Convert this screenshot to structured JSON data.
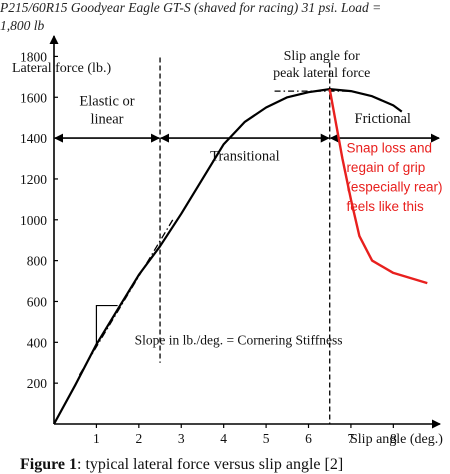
{
  "header": {
    "line1": "P215/60R15 Goodyear Eagle GT-S (shaved for racing) 31 psi. Load =",
    "line2": "1,800 lb"
  },
  "caption": {
    "bold": "Figure 1",
    "text": ": typical lateral force versus slip angle [2]"
  },
  "chart_data": {
    "type": "line",
    "xlabel": "Slip angle (deg.)",
    "ylabel": "Lateral force (lb.)",
    "xlim": [
      0,
      9.1
    ],
    "ylim": [
      0,
      1900
    ],
    "x_ticks": [
      "1",
      "2",
      "3",
      "4",
      "5",
      "6",
      "7",
      "8"
    ],
    "y_ticks": [
      "200",
      "400",
      "600",
      "800",
      "1000",
      "1200",
      "1400",
      "1600",
      "1800"
    ],
    "grid": false,
    "colors": {
      "main": "#000000",
      "snap": "#e8201e"
    },
    "series": [
      {
        "values": [
          [
            0,
            0
          ],
          [
            0.5,
            190
          ],
          [
            1,
            390
          ],
          [
            1.5,
            560
          ],
          [
            2,
            730
          ],
          [
            2.5,
            870
          ],
          [
            3,
            1030
          ],
          [
            3.5,
            1200
          ],
          [
            4,
            1370
          ],
          [
            4.5,
            1480
          ],
          [
            5,
            1550
          ],
          [
            5.5,
            1600
          ],
          [
            6,
            1625
          ],
          [
            6.5,
            1640
          ],
          [
            7,
            1630
          ],
          [
            7.5,
            1605
          ],
          [
            8,
            1560
          ],
          [
            8.2,
            1530
          ]
        ]
      },
      {
        "values": [
          [
            6.5,
            1640
          ],
          [
            6.8,
            1300
          ],
          [
            7,
            1100
          ],
          [
            7.2,
            920
          ],
          [
            7.5,
            800
          ],
          [
            8,
            740
          ],
          [
            8.8,
            690
          ]
        ]
      }
    ],
    "reference_lines": {
      "linear_tangent": [
        [
          0.6,
          240
        ],
        [
          2.8,
          1000
        ]
      ],
      "peak_dash": [
        [
          5.2,
          1630
        ],
        [
          7.1,
          1630
        ]
      ],
      "vlines": [
        2.5,
        6.5
      ]
    },
    "slope_triangle": {
      "x": [
        1,
        1.5
      ],
      "y": [
        380,
        580
      ]
    },
    "regions": [
      {
        "label": "Elastic or\nlinear",
        "from": 0,
        "to": 2.5
      },
      {
        "label": "Transitional",
        "from": 2.5,
        "to": 6.5
      },
      {
        "label": "Frictional",
        "from": 6.5,
        "to": 9.1
      }
    ],
    "region_arrow_y": 1400,
    "annotations": {
      "peak_label": "Slip angle for\npeak lateral force",
      "slope_label": "Slope in lb./deg. = Cornering Stiffness",
      "snap_label": "Snap loss and\nregain of grip\n(especially rear)\nfeels like this"
    }
  }
}
